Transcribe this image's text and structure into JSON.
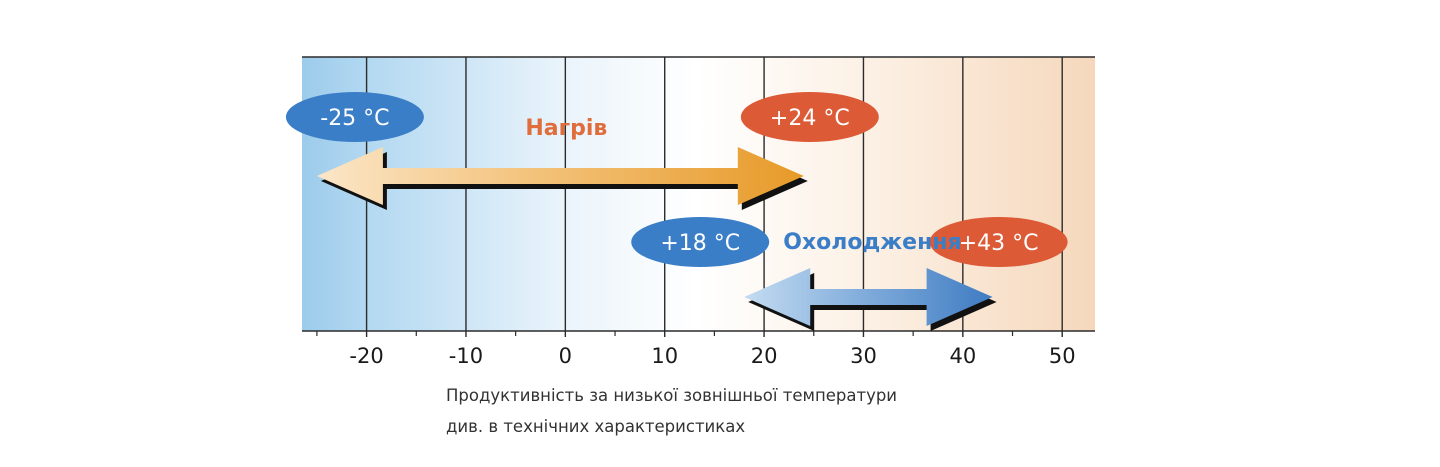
{
  "colors": {
    "cold": "#9ccbeb",
    "warm": "#f5d8bc",
    "grid": "#2b2b2b",
    "heating_accent": "#e06d3c",
    "heating_arrow": "#eba437",
    "cooling_accent": "#3b7ec8",
    "cooling_arrow": "#4b86c6",
    "pill_blue": "#3b7ec8",
    "pill_red": "#dc5a36"
  },
  "chart_data": {
    "type": "range",
    "x_ticks": [
      -20,
      -10,
      0,
      10,
      20,
      30,
      40,
      50
    ],
    "x_tick_labels": [
      "-20",
      "-10",
      "0",
      "10",
      "20",
      "30",
      "40",
      "50"
    ],
    "xlim": [
      -26.5,
      53.3
    ],
    "grid": true,
    "series": [
      {
        "name": "Нагрів",
        "min": -25,
        "max": 24,
        "min_label": "-25 °C",
        "max_label": "+24 °C",
        "min_color": "blue",
        "max_color": "red",
        "arrow_gradient": "light-to-dark orange"
      },
      {
        "name": "Охолодження",
        "min": 18,
        "max": 43,
        "min_label": "+18 °C",
        "max_label": "+43 °C",
        "min_color": "blue",
        "max_color": "red",
        "arrow_gradient": "light-to-dark blue"
      }
    ]
  },
  "caption": {
    "line1": "Продуктивність за низької зовнішньої температури",
    "line2": "див. в технічних характеристиках"
  }
}
